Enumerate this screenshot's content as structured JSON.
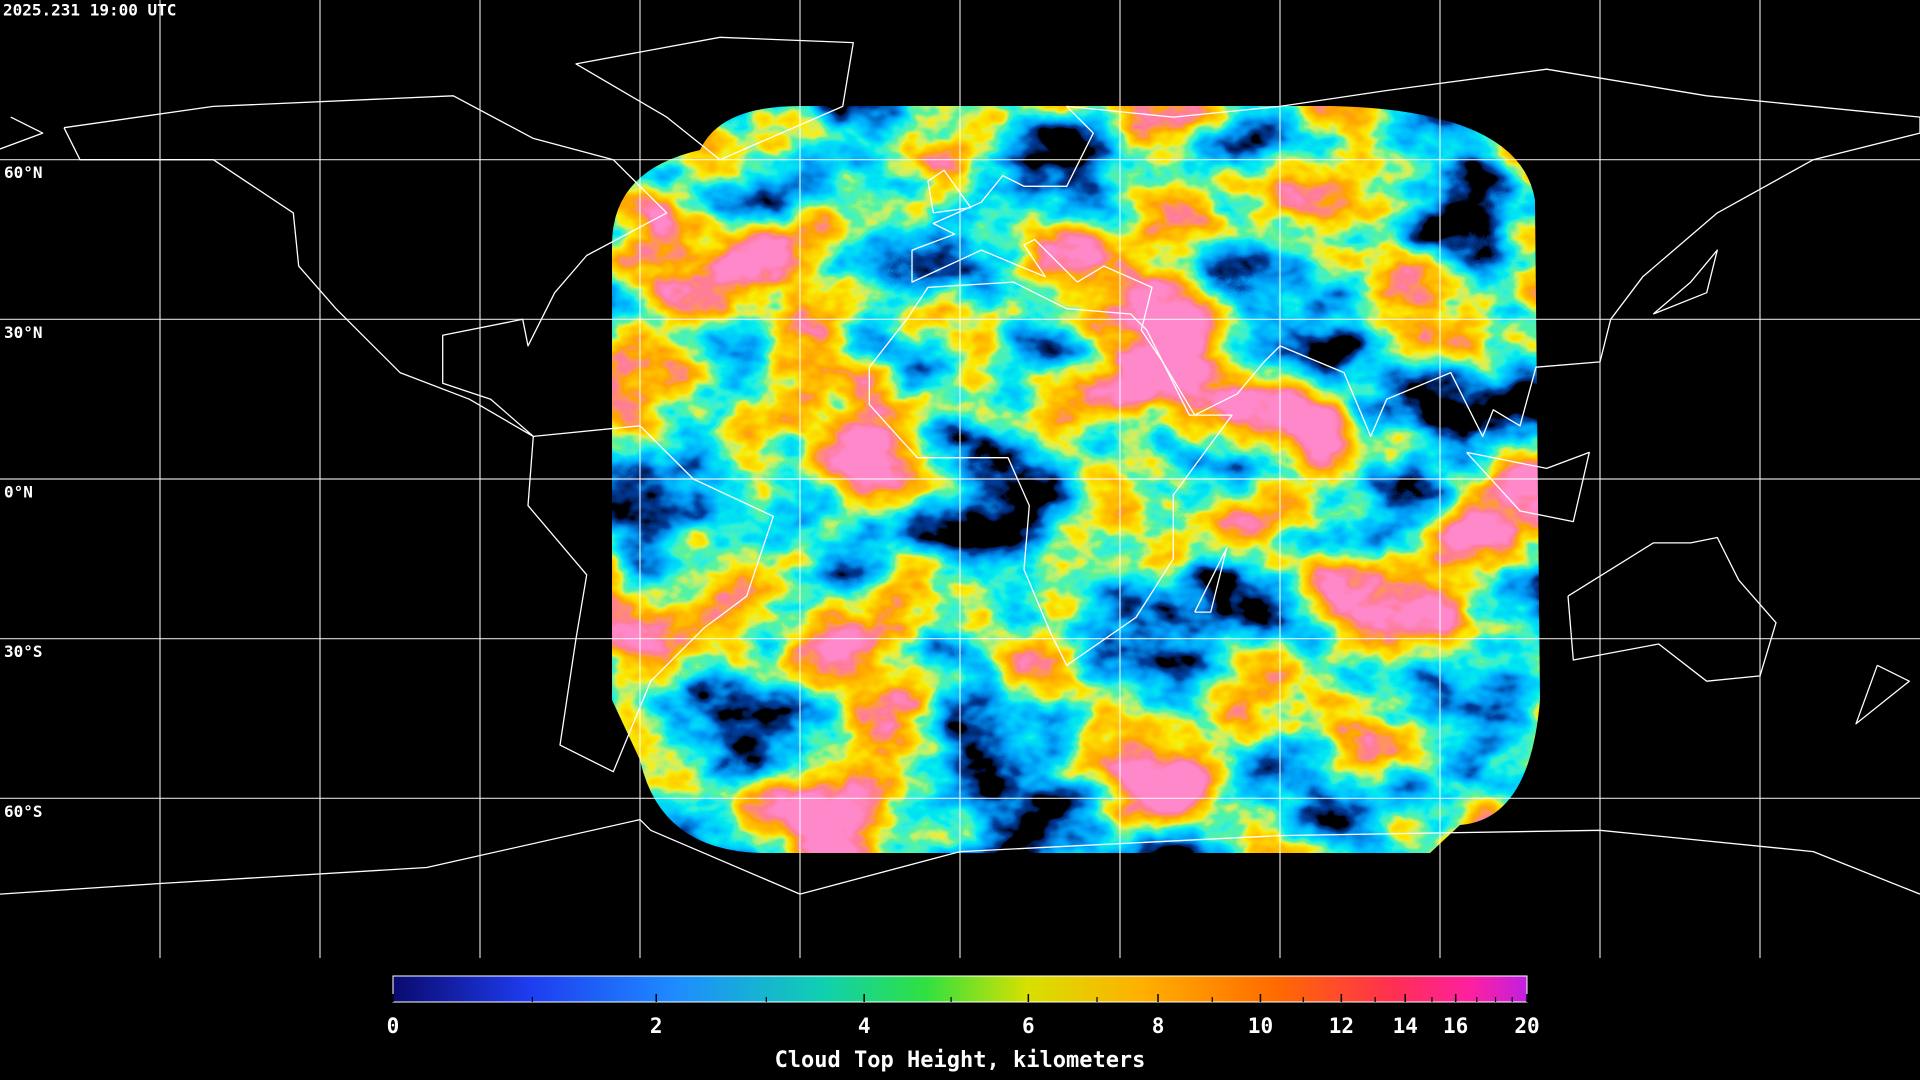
{
  "timestamp": "2025.231 19:00 UTC",
  "map": {
    "lat_labels": [
      "60°N",
      "30°N",
      "0°N",
      "30°S",
      "60°S"
    ]
  },
  "colorbar": {
    "title": "Cloud Top Height, kilometers",
    "range": [
      0,
      20
    ],
    "ticks": [
      0,
      2,
      4,
      6,
      8,
      10,
      12,
      14,
      16,
      20
    ],
    "minor_ticks": [
      1,
      3,
      5,
      7,
      9,
      11,
      13,
      15,
      17,
      18,
      19
    ]
  }
}
